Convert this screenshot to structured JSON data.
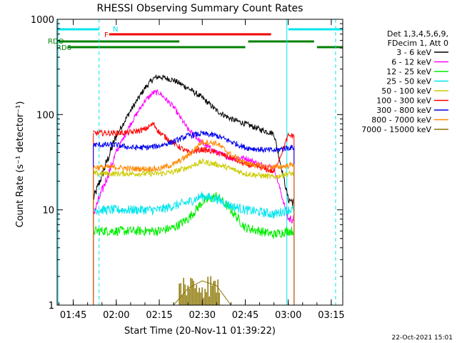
{
  "chart_data": {
    "type": "line",
    "title": "RHESSI Observing Summary Count Rates",
    "xlabel": "Start Time (20-Nov-11 01:39:22)",
    "ylabel": "Count Rate (s⁻¹ detector⁻¹)",
    "y_scale": "log",
    "ylim": [
      1,
      1000
    ],
    "xlim": [
      "01:39:22",
      "03:19:00"
    ],
    "x_ticks": [
      "01:45",
      "02:00",
      "02:15",
      "02:30",
      "02:45",
      "03:00",
      "03:15"
    ],
    "y_ticks": [
      "1",
      "10",
      "100",
      "1000"
    ],
    "grid": false,
    "legend_position": "right",
    "legend_header": [
      "Det 1,3,4,5,6,9,",
      "FDecim 1, Att 0"
    ],
    "footer_date": "22-Oct-2021 15:01",
    "flags": [
      {
        "label": "N",
        "color": "#00e5ee",
        "segments": [
          [
            "01:39:22",
            "01:54:00"
          ],
          [
            "03:00:00",
            "03:19:00"
          ]
        ]
      },
      {
        "label": "F",
        "color": "#ee0000",
        "segments": [
          [
            "01:57:30",
            "02:54:00"
          ]
        ]
      },
      {
        "label": "RDO",
        "color": "#008000",
        "segments": [
          [
            "01:39:22",
            "02:22:00"
          ],
          [
            "02:46:00",
            "03:09:00"
          ]
        ]
      },
      {
        "label": "RD6",
        "color": "#008000",
        "segments": [
          [
            "01:43:00",
            "02:45:00"
          ],
          [
            "03:10:00",
            "03:19:00"
          ]
        ]
      }
    ],
    "vlines": [
      {
        "time": "01:39:40",
        "color": "#00e5ee",
        "style": "solid"
      },
      {
        "time": "01:54:00",
        "color": "#00e5ee",
        "style": "dashed"
      },
      {
        "time": "02:59:30",
        "color": "#00e5ee",
        "style": "solid"
      },
      {
        "time": "03:16:30",
        "color": "#00e5ee",
        "style": "dashed"
      }
    ],
    "x": [
      "01:52:00",
      "02:00:00",
      "02:05:00",
      "02:10:00",
      "02:13:00",
      "02:15:00",
      "02:20:00",
      "02:25:00",
      "02:30:00",
      "02:35:00",
      "02:40:00",
      "02:45:00",
      "02:50:00",
      "02:55:00",
      "03:00:00",
      "03:02:00"
    ],
    "series": [
      {
        "name": "3 - 6 keV",
        "color": "#000000",
        "values": [
          13,
          60,
          110,
          190,
          240,
          250,
          230,
          190,
          150,
          110,
          90,
          80,
          70,
          63,
          13,
          12
        ]
      },
      {
        "name": "6 - 12 keV",
        "color": "#ff00ff",
        "values": [
          9,
          40,
          80,
          140,
          170,
          170,
          120,
          70,
          50,
          40,
          35,
          35,
          30,
          28,
          8,
          8
        ]
      },
      {
        "name": "12 - 25 keV",
        "color": "#00ee00",
        "values": [
          6,
          6,
          6,
          6,
          6,
          6,
          6.5,
          8,
          12,
          14,
          10,
          6.5,
          6,
          5.5,
          6,
          6
        ]
      },
      {
        "name": "25 - 50 keV",
        "color": "#00e5ee",
        "values": [
          10,
          10,
          10,
          10,
          10,
          10,
          11,
          12,
          14,
          13,
          11,
          10,
          9.5,
          9,
          10,
          10
        ]
      },
      {
        "name": "50 - 100 keV",
        "color": "#cccc00",
        "values": [
          24,
          24,
          24,
          24,
          24,
          24,
          25,
          28,
          32,
          30,
          27,
          24,
          23,
          22,
          24,
          24
        ]
      },
      {
        "name": "100 - 300 keV",
        "color": "#ff0000",
        "values": [
          64,
          64,
          65,
          70,
          80,
          65,
          50,
          40,
          43,
          40,
          35,
          30,
          28,
          25,
          60,
          60
        ]
      },
      {
        "name": "300 - 800 keV",
        "color": "#0000ee",
        "values": [
          48,
          48,
          45,
          45,
          46,
          47,
          52,
          60,
          63,
          60,
          52,
          45,
          43,
          42,
          45,
          45
        ]
      },
      {
        "name": "800 - 7000 keV",
        "color": "#ff8800",
        "values": [
          28,
          28,
          27,
          27,
          27,
          27,
          30,
          37,
          52,
          50,
          38,
          31,
          29,
          28,
          29,
          30
        ]
      },
      {
        "name": "7000 - 15000 keV",
        "color": "#8b7500",
        "values": [
          1,
          1,
          1,
          1,
          1,
          1,
          1,
          1.5,
          1.8,
          1.6,
          1,
          1,
          1,
          1,
          1,
          1
        ]
      }
    ]
  }
}
